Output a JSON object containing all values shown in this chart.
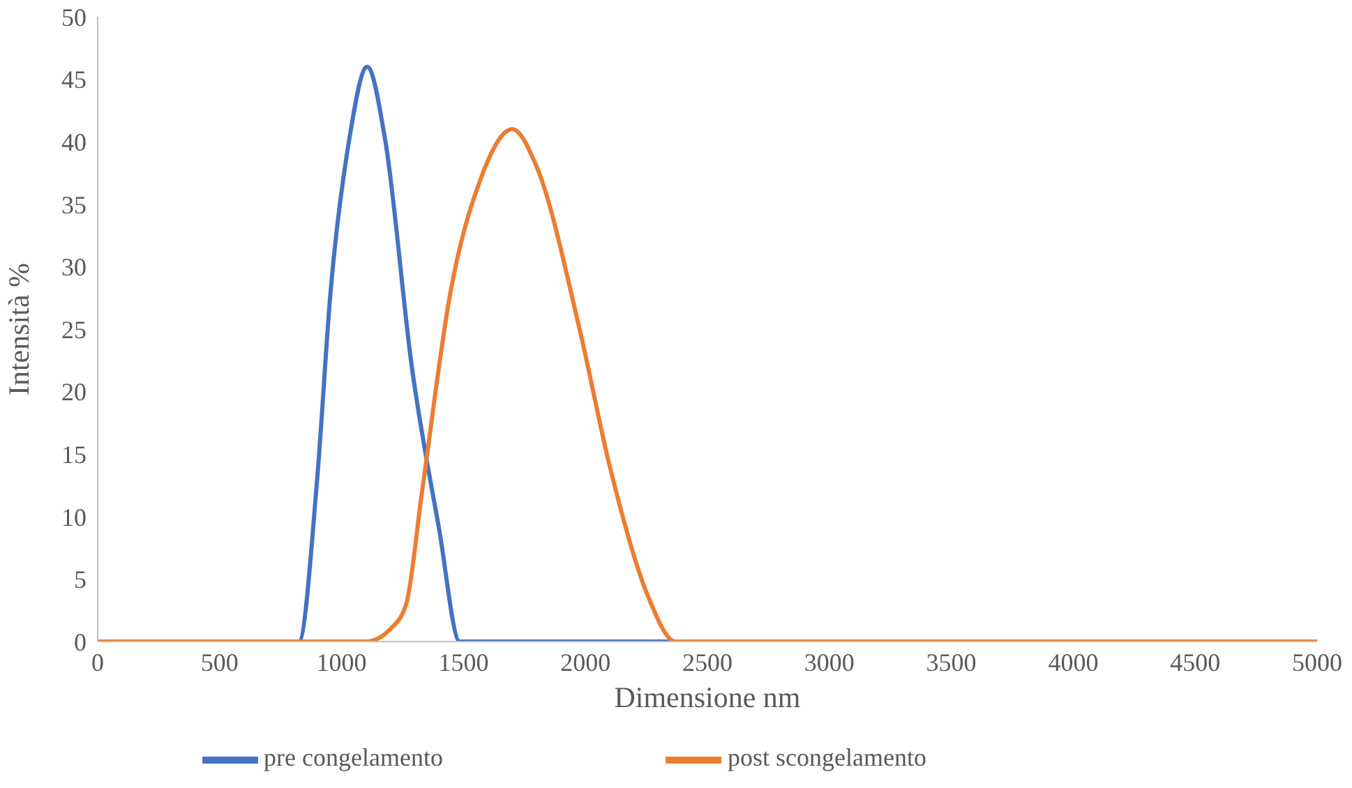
{
  "chart_data": {
    "type": "line",
    "xlabel": "Dimensione nm",
    "ylabel": "Intensità %",
    "xlim": [
      0,
      5000
    ],
    "xticks": [
      0,
      500,
      1000,
      1500,
      2000,
      2500,
      3000,
      3500,
      4000,
      4500,
      5000
    ],
    "ylim": [
      0,
      50
    ],
    "yticks": [
      0,
      5,
      10,
      15,
      20,
      25,
      30,
      35,
      40,
      45,
      50
    ],
    "grid": false,
    "legend": "bottom",
    "marker": "none",
    "line_style": "solid",
    "series": [
      {
        "name": "pre congelamento",
        "color": "#4472c4",
        "x": [
          780,
          825,
          900,
          955,
          1030,
          1105,
          1180,
          1288,
          1400,
          1485,
          1700,
          2000,
          2500
        ],
        "values": [
          0,
          0,
          13,
          28,
          40,
          46,
          40,
          22,
          9,
          0,
          0,
          0,
          0
        ]
      },
      {
        "name": "post scongelamento",
        "color": "#ed7d31",
        "x": [
          0,
          500,
          900,
          1100,
          1200,
          1265,
          1330,
          1447,
          1570,
          1700,
          1800,
          1976,
          2100,
          2253,
          2370,
          2500,
          3000,
          4000,
          5000
        ],
        "values": [
          0,
          0,
          0,
          0,
          1,
          3,
          12,
          28,
          37,
          41,
          38,
          25,
          14,
          3.8,
          0,
          0,
          0,
          0,
          0
        ]
      }
    ]
  }
}
